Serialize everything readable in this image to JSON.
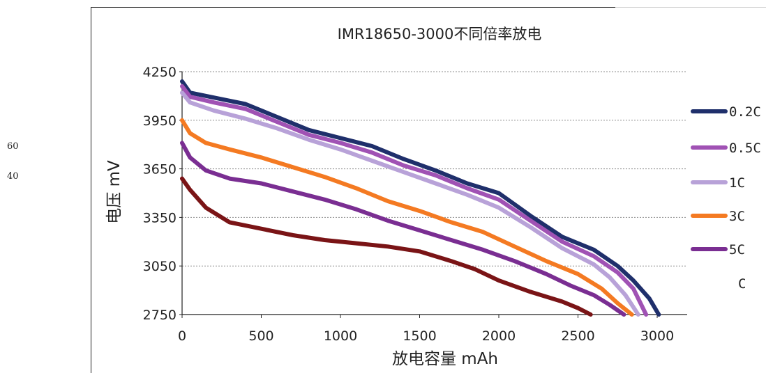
{
  "margin_numbers": [
    "60",
    "40"
  ],
  "chart_data": {
    "type": "line",
    "title": "IMR18650-3000不同倍率放电",
    "xlabel": "放电容量 mAh",
    "ylabel": "电压 mV",
    "xlim": [
      0,
      3000
    ],
    "ylim": [
      2750,
      4250
    ],
    "xticks": [
      0,
      500,
      1000,
      1500,
      2000,
      2500,
      3000
    ],
    "yticks": [
      2750,
      3050,
      3350,
      3650,
      3950,
      4250
    ],
    "grid": "horizontal dashed",
    "legend_position": "right",
    "legend_extra_label": "C",
    "series": [
      {
        "name": "0.2C",
        "color": "#1f2f6b",
        "points": [
          [
            0,
            4190
          ],
          [
            50,
            4120
          ],
          [
            200,
            4090
          ],
          [
            400,
            4050
          ],
          [
            600,
            3970
          ],
          [
            800,
            3890
          ],
          [
            1000,
            3840
          ],
          [
            1200,
            3790
          ],
          [
            1400,
            3710
          ],
          [
            1600,
            3640
          ],
          [
            1800,
            3560
          ],
          [
            2000,
            3500
          ],
          [
            2200,
            3360
          ],
          [
            2400,
            3230
          ],
          [
            2600,
            3150
          ],
          [
            2750,
            3050
          ],
          [
            2850,
            2960
          ],
          [
            2950,
            2850
          ],
          [
            3010,
            2750
          ]
        ]
      },
      {
        "name": "0.5C",
        "color": "#a052b4",
        "points": [
          [
            0,
            4160
          ],
          [
            50,
            4095
          ],
          [
            200,
            4060
          ],
          [
            400,
            4020
          ],
          [
            600,
            3940
          ],
          [
            800,
            3860
          ],
          [
            1000,
            3810
          ],
          [
            1200,
            3750
          ],
          [
            1400,
            3670
          ],
          [
            1600,
            3610
          ],
          [
            1800,
            3530
          ],
          [
            2000,
            3460
          ],
          [
            2200,
            3330
          ],
          [
            2400,
            3200
          ],
          [
            2600,
            3110
          ],
          [
            2750,
            3010
          ],
          [
            2850,
            2910
          ],
          [
            2930,
            2750
          ]
        ]
      },
      {
        "name": "1C",
        "color": "#b8a2d8",
        "points": [
          [
            0,
            4120
          ],
          [
            50,
            4060
          ],
          [
            200,
            4010
          ],
          [
            400,
            3960
          ],
          [
            600,
            3900
          ],
          [
            800,
            3830
          ],
          [
            1000,
            3770
          ],
          [
            1200,
            3700
          ],
          [
            1400,
            3630
          ],
          [
            1600,
            3560
          ],
          [
            1800,
            3490
          ],
          [
            2000,
            3410
          ],
          [
            2200,
            3290
          ],
          [
            2400,
            3160
          ],
          [
            2600,
            3060
          ],
          [
            2700,
            2980
          ],
          [
            2800,
            2870
          ],
          [
            2880,
            2750
          ]
        ]
      },
      {
        "name": "3C",
        "color": "#f47a22",
        "points": [
          [
            0,
            3950
          ],
          [
            50,
            3870
          ],
          [
            150,
            3810
          ],
          [
            300,
            3770
          ],
          [
            500,
            3720
          ],
          [
            700,
            3660
          ],
          [
            900,
            3600
          ],
          [
            1100,
            3530
          ],
          [
            1300,
            3450
          ],
          [
            1500,
            3390
          ],
          [
            1700,
            3320
          ],
          [
            1900,
            3260
          ],
          [
            2100,
            3170
          ],
          [
            2300,
            3080
          ],
          [
            2500,
            3000
          ],
          [
            2650,
            2910
          ],
          [
            2750,
            2820
          ],
          [
            2840,
            2750
          ]
        ]
      },
      {
        "name": "5C",
        "color": "#7a2e92",
        "points": [
          [
            0,
            3810
          ],
          [
            50,
            3720
          ],
          [
            150,
            3640
          ],
          [
            300,
            3590
          ],
          [
            500,
            3560
          ],
          [
            700,
            3510
          ],
          [
            900,
            3460
          ],
          [
            1100,
            3400
          ],
          [
            1300,
            3330
          ],
          [
            1500,
            3270
          ],
          [
            1700,
            3210
          ],
          [
            1900,
            3150
          ],
          [
            2100,
            3080
          ],
          [
            2300,
            3000
          ],
          [
            2450,
            2930
          ],
          [
            2600,
            2870
          ],
          [
            2700,
            2810
          ],
          [
            2790,
            2750
          ]
        ]
      },
      {
        "name": "",
        "color": "#7a1416",
        "points": [
          [
            0,
            3590
          ],
          [
            50,
            3520
          ],
          [
            150,
            3410
          ],
          [
            300,
            3320
          ],
          [
            500,
            3280
          ],
          [
            700,
            3240
          ],
          [
            900,
            3210
          ],
          [
            1100,
            3190
          ],
          [
            1300,
            3170
          ],
          [
            1500,
            3140
          ],
          [
            1700,
            3080
          ],
          [
            1850,
            3030
          ],
          [
            2000,
            2960
          ],
          [
            2200,
            2890
          ],
          [
            2400,
            2830
          ],
          [
            2500,
            2790
          ],
          [
            2580,
            2750
          ]
        ]
      }
    ]
  }
}
